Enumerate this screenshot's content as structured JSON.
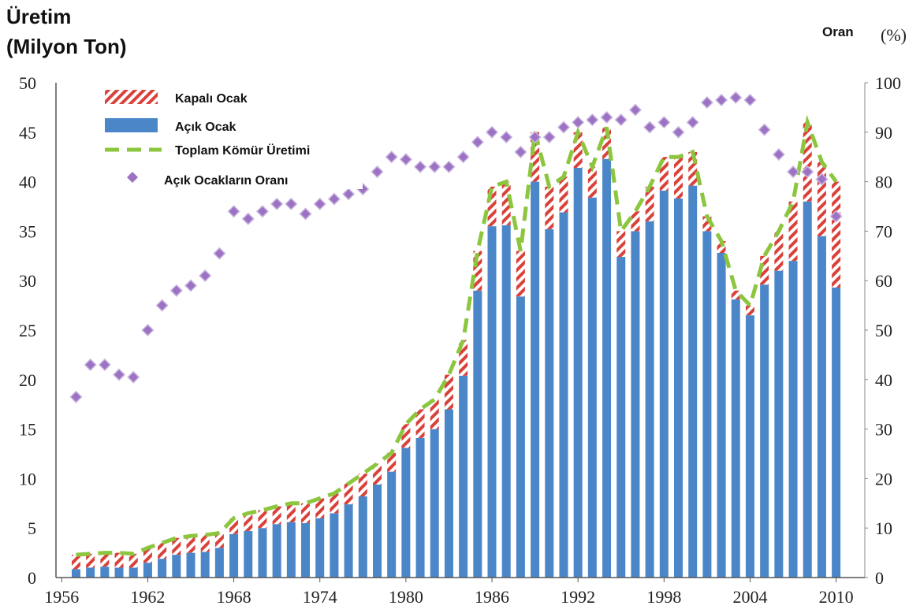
{
  "chart_data": {
    "type": "stacked_bar_line_scatter",
    "y_label_line1": "Üretim",
    "y_label_line2": "(Milyon Ton)",
    "y2_label_word": "Oran",
    "y2_label_unit": "(%)",
    "x": [
      1957,
      1958,
      1959,
      1960,
      1961,
      1962,
      1963,
      1964,
      1965,
      1966,
      1967,
      1968,
      1969,
      1970,
      1971,
      1972,
      1973,
      1974,
      1975,
      1976,
      1977,
      1978,
      1979,
      1980,
      1981,
      1982,
      1983,
      1984,
      1985,
      1986,
      1987,
      1988,
      1989,
      1990,
      1991,
      1992,
      1993,
      1994,
      1995,
      1996,
      1997,
      1998,
      1999,
      2000,
      2001,
      2002,
      2003,
      2004,
      2005,
      2006,
      2007,
      2008,
      2009,
      2010
    ],
    "series": [
      {
        "name": "Kapalı Ocak",
        "color": "#d9413a",
        "kind": "bar",
        "values": [
          1.45,
          1.4,
          1.4,
          1.5,
          1.4,
          1.5,
          1.6,
          1.7,
          1.7,
          1.7,
          1.5,
          1.6,
          1.8,
          1.8,
          1.8,
          1.9,
          2.0,
          2.0,
          2.0,
          2.1,
          2.3,
          2.1,
          1.9,
          2.4,
          2.9,
          3.0,
          3.5,
          3.6,
          4.0,
          4.0,
          4.4,
          4.6,
          5.0,
          4.3,
          3.6,
          3.6,
          3.1,
          3.2,
          2.6,
          2.0,
          3.5,
          3.4,
          4.2,
          3.4,
          1.5,
          1.2,
          0.9,
          1.0,
          2.9,
          4.0,
          6.0,
          8.0,
          7.5,
          10.7
        ]
      },
      {
        "name": "Açık Ocak",
        "color": "#4a86c8",
        "kind": "bar",
        "values": [
          0.85,
          1.0,
          1.1,
          1.0,
          1.0,
          1.5,
          1.9,
          2.3,
          2.5,
          2.6,
          3.0,
          4.4,
          4.7,
          5.0,
          5.4,
          5.6,
          5.5,
          6.0,
          6.5,
          7.4,
          8.2,
          9.4,
          10.7,
          13.1,
          14.1,
          15.0,
          17.0,
          20.4,
          29.0,
          35.5,
          35.6,
          28.4,
          40.0,
          35.2,
          36.9,
          41.4,
          38.4,
          42.3,
          32.4,
          35.0,
          36.0,
          39.1,
          38.3,
          39.6,
          35.0,
          32.8,
          28.1,
          26.5,
          29.6,
          31.0,
          32.0,
          38.0,
          34.5,
          29.3
        ]
      },
      {
        "name": "Toplam Kömür Üretimi",
        "color": "#8cc63e",
        "kind": "line",
        "values": [
          2.3,
          2.4,
          2.5,
          2.5,
          2.4,
          3.0,
          3.5,
          4.0,
          4.2,
          4.3,
          4.5,
          6.0,
          6.5,
          6.8,
          7.2,
          7.5,
          7.5,
          8.0,
          8.5,
          9.5,
          10.5,
          11.5,
          12.6,
          15.5,
          17.0,
          18.0,
          20.5,
          24.0,
          33.0,
          39.5,
          40.0,
          33.0,
          45.0,
          39.5,
          40.5,
          45.0,
          41.5,
          45.5,
          35.0,
          37.0,
          39.5,
          42.5,
          42.5,
          43.0,
          36.5,
          34.0,
          29.0,
          27.5,
          32.5,
          35.0,
          38.0,
          46.0,
          42.0,
          40.0
        ]
      },
      {
        "name": "Açık Ocakların Oranı",
        "color": "#9c72c4",
        "kind": "scatter",
        "axis": "y2",
        "values": [
          36.5,
          43,
          43,
          41,
          40.5,
          50,
          55,
          58,
          59,
          61,
          65.5,
          74,
          72.5,
          74,
          75.5,
          75.5,
          73.5,
          75.5,
          76.5,
          77.5,
          78.5,
          82,
          85,
          84.5,
          83,
          83,
          83,
          85,
          88,
          90,
          89,
          86,
          89,
          89,
          91,
          92,
          92.5,
          93,
          92.5,
          94.5,
          91,
          92,
          90,
          92,
          96,
          96.5,
          97,
          96.5,
          90.5,
          85.5,
          82,
          82,
          80.5,
          73
        ]
      }
    ],
    "xlim": [
      1955.6,
      2012
    ],
    "xticks": [
      1956,
      1962,
      1968,
      1974,
      1980,
      1986,
      1992,
      1998,
      2004,
      2010
    ],
    "ylim": [
      0,
      50
    ],
    "yticks": [
      0,
      5,
      10,
      15,
      20,
      25,
      30,
      35,
      40,
      45,
      50
    ],
    "y2lim": [
      0,
      100
    ],
    "y2ticks": [
      0,
      10,
      20,
      30,
      40,
      50,
      60,
      70,
      80,
      90,
      100
    ],
    "grid": true,
    "legend": "upper left"
  }
}
